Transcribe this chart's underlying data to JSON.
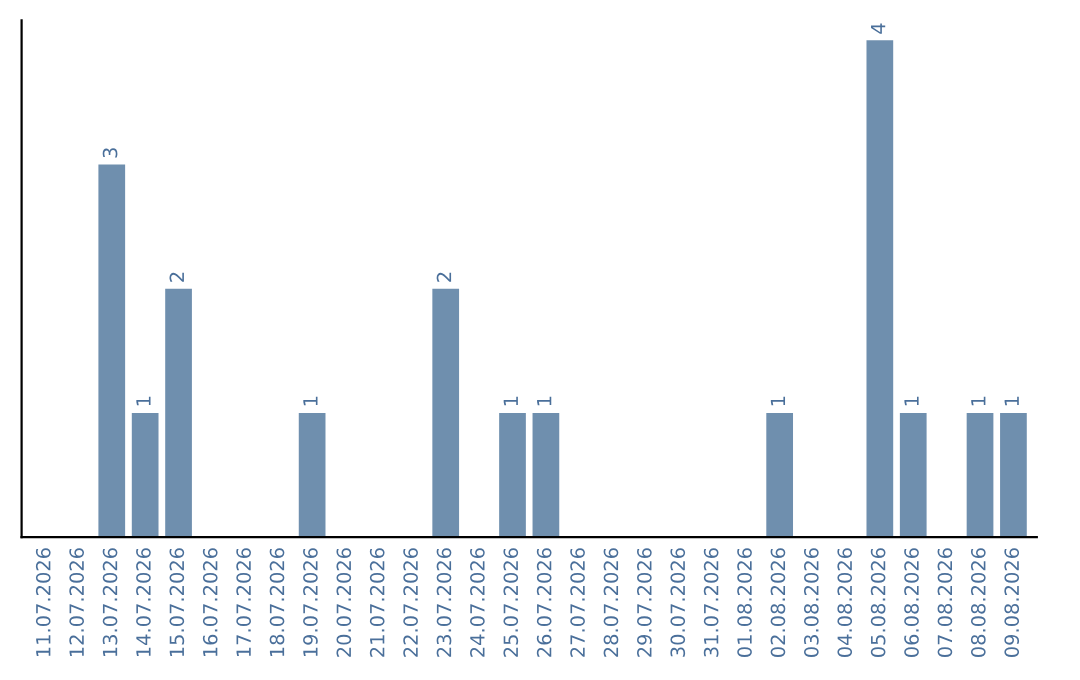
{
  "chart_data": {
    "type": "bar",
    "categories": [
      "11.07.2026",
      "12.07.2026",
      "13.07.2026",
      "14.07.2026",
      "15.07.2026",
      "16.07.2026",
      "17.07.2026",
      "18.07.2026",
      "19.07.2026",
      "20.07.2026",
      "21.07.2026",
      "22.07.2026",
      "23.07.2026",
      "24.07.2026",
      "25.07.2026",
      "26.07.2026",
      "27.07.2026",
      "28.07.2026",
      "29.07.2026",
      "30.07.2026",
      "31.07.2026",
      "01.08.2026",
      "02.08.2026",
      "03.08.2026",
      "04.08.2026",
      "05.08.2026",
      "06.08.2026",
      "07.08.2026",
      "08.08.2026",
      "09.08.2026"
    ],
    "values": [
      0,
      0,
      3,
      1,
      2,
      0,
      0,
      0,
      1,
      0,
      0,
      0,
      2,
      0,
      1,
      1,
      0,
      0,
      0,
      0,
      0,
      0,
      1,
      0,
      0,
      4,
      1,
      0,
      1,
      1
    ],
    "value_labels": [
      null,
      null,
      "3",
      "1",
      "2",
      null,
      null,
      null,
      "1",
      null,
      null,
      null,
      "2",
      null,
      "1",
      "1",
      null,
      null,
      null,
      null,
      null,
      null,
      "1",
      null,
      null,
      "4",
      "1",
      null,
      "1",
      "1"
    ],
    "color": "#6f8fae",
    "tick_labels": "x",
    "grid": false,
    "legend": false
  }
}
